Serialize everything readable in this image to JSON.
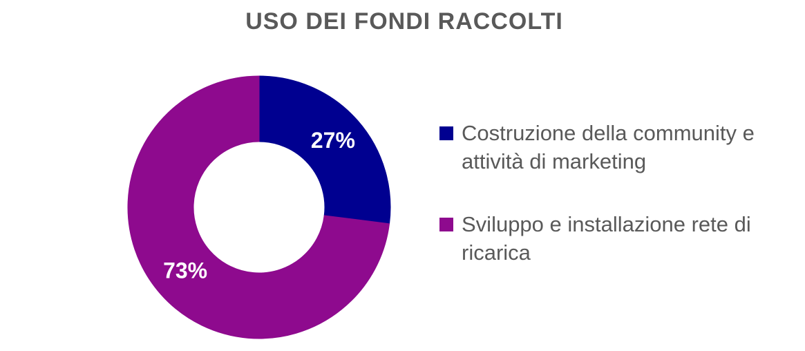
{
  "chart_data": {
    "type": "pie",
    "donut": true,
    "title": "USO DEI FONDI RACCOLTI",
    "categories": [
      "Costruzione della community e attività di marketing",
      "Sviluppo e installazione rete di ricarica"
    ],
    "values": [
      27,
      73
    ],
    "value_labels": [
      "27%",
      "73%"
    ],
    "colors": [
      "#000090",
      "#8e0a8e"
    ]
  }
}
